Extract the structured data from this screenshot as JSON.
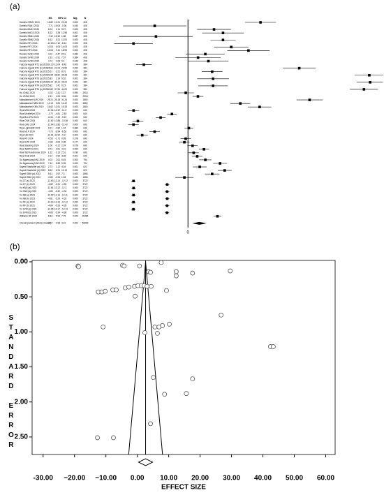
{
  "chart_data": [
    {
      "type": "forest",
      "panel": "(a)",
      "columns": [
        "ES",
        "95% CI",
        "Sig.",
        "N"
      ],
      "xlim": [
        -17.2,
        45.3
      ],
      "xticks": [
        0
      ],
      "rows": [
        [
          "Daniels ORM1 2024",
          16.82,
          13.21,
          20.43,
          "0.000",
          408
        ],
        [
          "Daniels RAN1 2024",
          -7.71,
          -15.06,
          -0.36,
          "0.040",
          408
        ],
        [
          "Daniels BAG2 2024",
          6.04,
          2.11,
          9.97,
          "0.003",
          408
        ],
        [
          "Daniels MAG3 2024",
          8.13,
          3.28,
          12.98,
          "0.001",
          408
        ],
        [
          "Daniels SBM1 2024",
          -7.42,
          -15.92,
          1.08,
          "0.087",
          408
        ],
        [
          "Daniels SBM2 2024",
          8.12,
          5.21,
          11.03,
          "0.000",
          408
        ],
        [
          "Daniels RF1 2024",
          -12.63,
          -17.12,
          -8.14,
          "0.000",
          408
        ],
        [
          "Daniels RF2 2024",
          10.04,
          6.05,
          14.03,
          "0.000",
          408
        ],
        [
          "Daniels RF3 2024",
          14.03,
          9.11,
          18.95,
          "0.000",
          408
        ],
        [
          "Daniels SVM1 2024",
          4.02,
          -0.47,
          8.51,
          "0.080",
          408
        ],
        [
          "Daniels SVM2 2024",
          2.33,
          -2.91,
          7.57,
          "0.384",
          408
        ],
        [
          "Daniels SVM3 2024",
          4.74,
          0.08,
          9.4,
          "0.046",
          408
        ],
        [
          "Falcone Agadir RT1 (a) 2022",
          -10.23,
          -12.04,
          -8.42,
          "0.000",
          384
        ],
        [
          "Falcone Agadir RT1 (b) 2022",
          25.81,
          22.03,
          29.59,
          "0.000",
          384
        ],
        [
          "Falcone Agadir RT2 (a) 2022",
          5.61,
          3.21,
          8.01,
          "0.000",
          384
        ],
        [
          "Falcone Agadir RT2 (b) 2022",
          42.05,
          38.62,
          45.28,
          "0.000",
          384
        ],
        [
          "Falcone Agadir RT3 (a) 2022",
          5.83,
          2.14,
          9.52,
          "0.002",
          384
        ],
        [
          "Falcone Agadir RT3 (b) 2022",
          42.24,
          39.11,
          45.21,
          "0.000",
          384
        ],
        [
          "Falcone Agadir RT4 (a) 2022",
          5.82,
          2.41,
          9.23,
          "0.001",
          384
        ],
        [
          "Falcone Agadir RT4 (b) 2022",
          40.82,
          37.55,
          44.09,
          "0.000",
          384
        ],
        [
          "Hu CNN1 2020",
          -0.52,
          -2.41,
          1.37,
          "0.590",
          2918
        ],
        [
          "Hu CNN2 2020",
          2.31,
          1.06,
          3.56,
          "0.000",
          2918
        ],
        [
          "Mahalakshmi NLR 2019",
          28.21,
          25.18,
          31.24,
          "0.000",
          1860
        ],
        [
          "Mahalakshmi NBM 2019",
          12.13,
          9.84,
          14.42,
          "0.000",
          1860
        ],
        [
          "Mahalakshmi KNN 2019",
          16.62,
          13.91,
          19.33,
          "0.000",
          1860
        ],
        [
          "Riya MHA 2024",
          -12.61,
          -13.92,
          -11.3,
          "0.000",
          640
        ],
        [
          "Riya MobileNet 2024",
          -3.72,
          -4.81,
          -2.63,
          "0.000",
          640
        ],
        [
          "Riya Bi-LSTM 2024",
          -6.34,
          -7.49,
          -5.19,
          "0.000",
          640
        ],
        [
          "Riya CNN 2024",
          -11.62,
          -12.88,
          -10.36,
          "0.000",
          640
        ],
        [
          "Riya GRU 2024",
          -12.64,
          -13.86,
          -11.42,
          "0.000",
          640
        ],
        [
          "Riya LightGBM 2024",
          0.21,
          -0.82,
          1.24,
          "0.689",
          640
        ],
        [
          "Riya MLP 2024",
          -7.73,
          -8.94,
          -6.52,
          "0.000",
          640
        ],
        [
          "Riya NB 2024",
          -10.61,
          -11.92,
          -9.3,
          "0.000",
          640
        ],
        [
          "Riya RF 2024",
          -0.53,
          -1.71,
          0.65,
          "0.378",
          640
        ],
        [
          "Riya SVM 2024",
          -0.84,
          -2.06,
          0.38,
          "0.177",
          640
        ],
        [
          "Riya Stacking 2024",
          1.06,
          -0.12,
          2.24,
          "0.078",
          640
        ],
        [
          "Riya TabPFN 2024",
          3.71,
          2.51,
          4.91,
          "0.000",
          640
        ],
        [
          "Riya TabTransformer 2024",
          1.32,
          0.13,
          2.51,
          "0.030",
          640
        ],
        [
          "Riya XGB 2024",
          2.14,
          0.92,
          3.36,
          "0.001",
          640
        ],
        [
          "Sa Ngamuang NN1 2019",
          4.03,
          2.61,
          5.45,
          "0.000",
          794
        ],
        [
          "Sa Ngamuang NN2 2019",
          7.44,
          5.83,
          9.05,
          "0.000",
          794
        ],
        [
          "Sayed ElasticNet (a) 2023",
          2.73,
          1.12,
          4.34,
          "0.001",
          622
        ],
        [
          "Sayed ElasticNet (b) 2023",
          8.52,
          6.91,
          10.13,
          "0.000",
          622
        ],
        [
          "Sayed GBM (a) 2023",
          5.61,
          3.92,
          7.3,
          "0.000",
          1866
        ],
        [
          "Sayed GBM (b) 2023",
          -0.83,
          -2.94,
          1.28,
          "0.440",
          1866
        ],
        [
          "Vu DT (a) 2023",
          -12.63,
          -13.14,
          -12.12,
          "0.000",
          3722
        ],
        [
          "Vu DT (b) 2023",
          -4.82,
          -5.31,
          -4.33,
          "0.000",
          3722
        ],
        [
          "Vu KNN (a) 2023",
          -12.61,
          -13.12,
          -12.1,
          "0.000",
          3722
        ],
        [
          "Vu KNN (b) 2023",
          -4.83,
          -5.32,
          -4.34,
          "0.000",
          3722
        ],
        [
          "Vu NB (a) 2023",
          -12.62,
          -13.13,
          -12.11,
          "0.000",
          3722
        ],
        [
          "Vu NB (b) 2023",
          -4.81,
          -5.29,
          -4.33,
          "0.000",
          3722
        ],
        [
          "Vu RF (a) 2023",
          -12.64,
          -13.16,
          -12.12,
          "0.000",
          3722
        ],
        [
          "Vu RF (b) 2023",
          -4.84,
          -5.33,
          -4.35,
          "0.000",
          3722
        ],
        [
          "Vu SVM (a) 2023",
          -12.65,
          -13.17,
          -12.13,
          "0.000",
          3722
        ],
        [
          "Vu SVM (b) 2023",
          -4.85,
          -5.34,
          -4.36,
          "0.000",
          3722
        ],
        [
          "Williams RF 2022",
          6.84,
          5.93,
          7.75,
          "0.000",
          25484
        ]
      ],
      "overall": [
        "Overall (random effects model)",
        2.64,
        0.98,
        4.31,
        "0.002",
        50839
      ]
    },
    {
      "type": "funnel",
      "panel": "(b)",
      "x_label": "EFFECT SIZE",
      "y_label": "STANDARD ERROR",
      "xlim": [
        -33.5,
        63
      ],
      "ylim": [
        -0.02,
        2.75
      ],
      "pooled": 2.64,
      "pooled_ci": [
        0.41,
        4.87
      ],
      "xticks": [
        {
          "value": -30,
          "label": "-30.00"
        },
        {
          "value": -20,
          "label": "−20.00"
        },
        {
          "value": -10,
          "label": "−10.00"
        },
        {
          "value": 0,
          "label": "0.00"
        },
        {
          "value": 10,
          "label": "10.00"
        },
        {
          "value": 20,
          "label": "20.00"
        },
        {
          "value": 30,
          "label": "30.00"
        },
        {
          "value": 40,
          "label": "40.00"
        },
        {
          "value": 50,
          "label": "50.00"
        },
        {
          "value": 60,
          "label": "60.00"
        }
      ],
      "yticks": [
        {
          "value": 0,
          "label": "0.00"
        },
        {
          "value": 0.5,
          "label": "0.50"
        },
        {
          "value": 1,
          "label": "1.00"
        },
        {
          "value": 1.5,
          "label": "1.50"
        },
        {
          "value": 2,
          "label": "2.00"
        },
        {
          "value": 2.5,
          "label": "2.50"
        }
      ],
      "x": [
        -18.9,
        -18.7,
        -4.7,
        -4.2,
        0.7,
        7.6,
        3.6,
        4.2,
        12.4,
        12.4,
        17.6,
        29.6,
        -12.4,
        -11.3,
        -10.2,
        -7.8,
        -6.7,
        -3.8,
        -2.7,
        -0.9,
        0.2,
        1.3,
        2.2,
        3.1,
        4.4,
        9.3,
        -0.7,
        26.7,
        -10.9,
        2.4,
        5.6,
        6.9,
        8,
        10.2,
        6.4,
        42.4,
        43.3,
        5.1,
        17.6,
        8.7,
        15.6,
        4.2,
        -12.7,
        -7.6
      ],
      "y": [
        0.06,
        0.07,
        0.05,
        0.06,
        0.06,
        0.01,
        0.14,
        0.15,
        0.14,
        0.2,
        0.16,
        0.13,
        0.43,
        0.43,
        0.42,
        0.4,
        0.4,
        0.37,
        0.36,
        0.35,
        0.34,
        0.34,
        0.34,
        0.35,
        0.35,
        0.41,
        0.49,
        0.76,
        0.93,
        1.01,
        0.93,
        0.93,
        0.91,
        0.89,
        1.02,
        1.21,
        1.21,
        1.65,
        1.67,
        1.89,
        1.88,
        2.31,
        2.51,
        2.51
      ]
    }
  ]
}
